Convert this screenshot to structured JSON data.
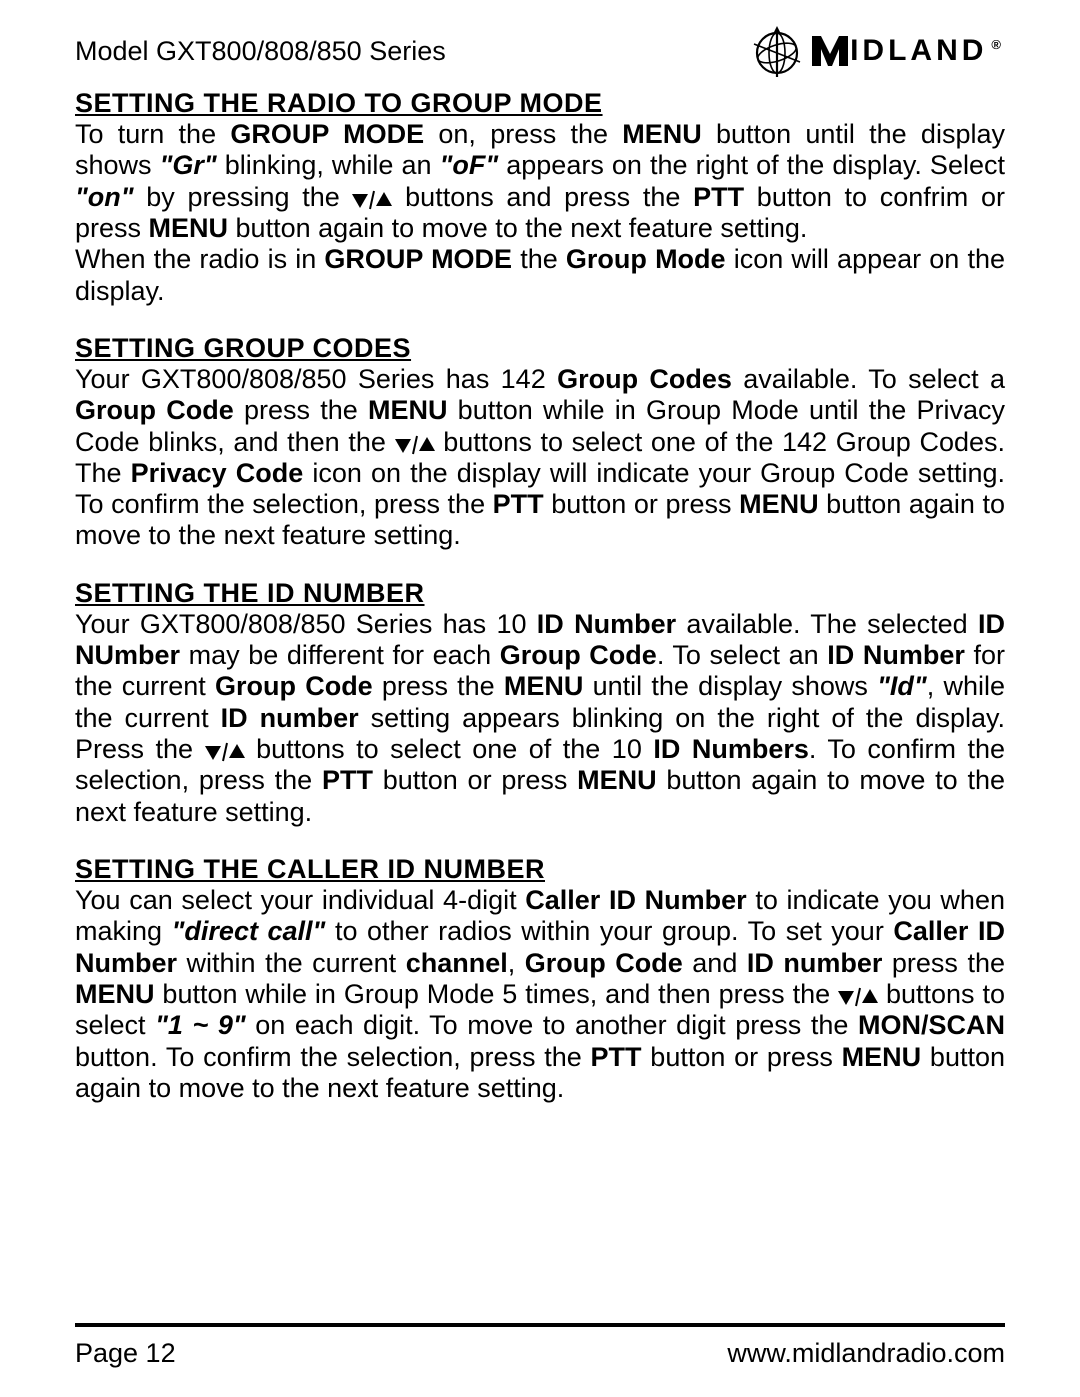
{
  "header": {
    "model": "Model GXT800/808/850 Series",
    "brand_name": "IDLAND",
    "brand_reg": "®"
  },
  "sections": [
    {
      "heading": "SETTING THE RADIO TO GROUP MODE",
      "paragraphs": [
        {
          "runs": [
            {
              "t": "To turn the "
            },
            {
              "t": "GROUP MODE",
              "cls": "bold"
            },
            {
              "t": " on, press the "
            },
            {
              "t": "MENU",
              "cls": "bold"
            },
            {
              "t": " button until the display shows "
            },
            {
              "t": "\"Gr\"",
              "cls": "bolditalic"
            },
            {
              "t": " blinking, while an "
            },
            {
              "t": "\"oF\"",
              "cls": "bolditalic"
            },
            {
              "t": " appears on the right of the display. Select "
            },
            {
              "t": "\"on\"",
              "cls": "bolditalic"
            },
            {
              "t": " by pressing the "
            },
            {
              "arrows": true
            },
            {
              "t": " buttons and press the "
            },
            {
              "t": "PTT",
              "cls": "bold"
            },
            {
              "t": " button to confrim or press "
            },
            {
              "t": "MENU",
              "cls": "bold"
            },
            {
              "t": " button again to move to the next feature setting."
            }
          ]
        },
        {
          "runs": [
            {
              "t": "When the radio is in "
            },
            {
              "t": "GROUP MODE",
              "cls": "bold"
            },
            {
              "t": " the "
            },
            {
              "t": "Group Mode",
              "cls": "bold"
            },
            {
              "t": " icon will appear on the display."
            }
          ]
        }
      ]
    },
    {
      "heading": "SETTING GROUP CODES",
      "paragraphs": [
        {
          "runs": [
            {
              "t": "Your GXT800/808/850 Series has 142 "
            },
            {
              "t": "Group Codes",
              "cls": "bold"
            },
            {
              "t": " available. To select a "
            },
            {
              "t": "Group Code",
              "cls": "bold"
            },
            {
              "t": " press the "
            },
            {
              "t": "MENU",
              "cls": "bold"
            },
            {
              "t": " button while in Group Mode until the Privacy Code blinks, and then the "
            },
            {
              "arrows": true
            },
            {
              "t": " buttons to select one of the 142 Group Codes. The "
            },
            {
              "t": "Privacy Code",
              "cls": "bold"
            },
            {
              "t": " icon on the display will indicate your Group Code setting. To confirm the selection, press the "
            },
            {
              "t": "PTT",
              "cls": "bold"
            },
            {
              "t": " button or press "
            },
            {
              "t": "MENU",
              "cls": "bold"
            },
            {
              "t": " button again to move to the next feature setting."
            }
          ]
        }
      ]
    },
    {
      "heading": "SETTING THE ID NUMBER",
      "paragraphs": [
        {
          "runs": [
            {
              "t": "Your GXT800/808/850 Series has 10 "
            },
            {
              "t": "ID Number",
              "cls": "bold"
            },
            {
              "t": " available. The selected "
            },
            {
              "t": "ID NUmber",
              "cls": "bold"
            },
            {
              "t": " may be different for each "
            },
            {
              "t": "Group Code",
              "cls": "bold"
            },
            {
              "t": ". To select an "
            },
            {
              "t": "ID Number",
              "cls": "bold"
            },
            {
              "t": " for the current "
            },
            {
              "t": "Group Code",
              "cls": "bold"
            },
            {
              "t": " press the "
            },
            {
              "t": "MENU",
              "cls": "bold"
            },
            {
              "t": " until the display shows "
            },
            {
              "t": "\"Id\"",
              "cls": "bolditalic"
            },
            {
              "t": ", while the current "
            },
            {
              "t": "ID number",
              "cls": "bold"
            },
            {
              "t": " setting appears blinking on the right of the display. Press the "
            },
            {
              "arrows": true
            },
            {
              "t": " buttons to select one of the 10 "
            },
            {
              "t": "ID Numbers",
              "cls": "bold"
            },
            {
              "t": ". To confirm the selection, press the "
            },
            {
              "t": "PTT",
              "cls": "bold"
            },
            {
              "t": " button or press "
            },
            {
              "t": "MENU",
              "cls": "bold"
            },
            {
              "t": " button again to move to the next feature setting."
            }
          ]
        }
      ]
    },
    {
      "heading": "SETTING THE CALLER ID NUMBER",
      "paragraphs": [
        {
          "runs": [
            {
              "t": "You can select your individual 4-digit "
            },
            {
              "t": "Caller ID Number",
              "cls": "bold"
            },
            {
              "t": " to indicate you when making "
            },
            {
              "t": "\"direct call\"",
              "cls": "bolditalic"
            },
            {
              "t": " to other radios within your group. To set your "
            },
            {
              "t": "Caller ID Number",
              "cls": "bold"
            },
            {
              "t": " within the current "
            },
            {
              "t": "channel",
              "cls": "bold"
            },
            {
              "t": ", "
            },
            {
              "t": "Group Code",
              "cls": "bold"
            },
            {
              "t": " and "
            },
            {
              "t": "ID number",
              "cls": "bold"
            },
            {
              "t": " press the "
            },
            {
              "t": "MENU",
              "cls": "bold"
            },
            {
              "t": " button while in Group Mode 5 times, and then press the "
            },
            {
              "arrows": true
            },
            {
              "t": " buttons to select "
            },
            {
              "t": "\"1 ~ 9\"",
              "cls": "bolditalic"
            },
            {
              "t": " on each digit. To move to another digit press the "
            },
            {
              "t": "MON/SCAN",
              "cls": "bold"
            },
            {
              "t": " button. To confirm the selection, press the "
            },
            {
              "t": "PTT",
              "cls": "bold"
            },
            {
              "t": " button or press "
            },
            {
              "t": "MENU",
              "cls": "bold"
            },
            {
              "t": " button again to move to the next feature setting."
            }
          ]
        }
      ]
    }
  ],
  "footer": {
    "page": "Page 12",
    "url": "www.midlandradio.com"
  }
}
